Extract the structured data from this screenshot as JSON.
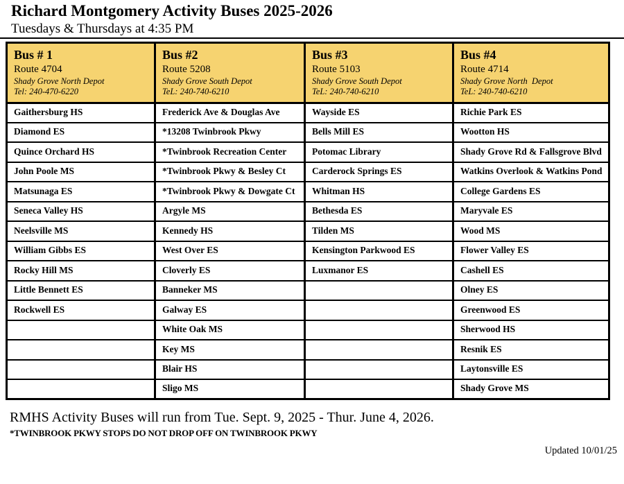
{
  "page": {
    "title": "Richard Montgomery Activity Buses 2025-2026",
    "subtitle": "Tuesdays & Thursdays at 4:35 PM"
  },
  "table": {
    "header_bg": "#F6D370",
    "buses": [
      {
        "name": "Bus # 1",
        "route": "Route 4704",
        "depot": "Shady Grove North Depot",
        "tel": "Tel: 240-470-6220"
      },
      {
        "name": "Bus #2",
        "route": "Route 5208",
        "depot": "Shady Grove South Depot",
        "tel": "TeL: 240-740-6210"
      },
      {
        "name": "Bus #3",
        "route": "Route 5103",
        "depot": "Shady Grove South Depot",
        "tel": "TeL: 240-740-6210"
      },
      {
        "name": "Bus #4",
        "route": "Route 4714",
        "depot": "Shady Grove North  Depot",
        "tel": "TeL: 240-740-6210"
      }
    ],
    "stops": [
      [
        "Gaithersburg HS",
        "Frederick Ave & Douglas Ave",
        "Wayside ES",
        "Richie Park ES"
      ],
      [
        "Diamond ES",
        "*13208 Twinbrook Pkwy",
        "Bells Mill ES",
        "Wootton HS"
      ],
      [
        "Quince Orchard HS",
        "*Twinbrook Recreation Center",
        "Potomac Library",
        "Shady Grove Rd & Fallsgrove Blvd"
      ],
      [
        "John Poole MS",
        "*Twinbrook Pkwy & Besley Ct",
        "Carderock Springs ES",
        "Watkins Overlook & Watkins Pond"
      ],
      [
        "Matsunaga ES",
        "*Twinbrook Pkwy & Dowgate Ct",
        "Whitman HS",
        "College Gardens ES"
      ],
      [
        "Seneca Valley HS",
        "Argyle MS",
        "Bethesda ES",
        "Maryvale ES"
      ],
      [
        "Neelsville MS",
        "Kennedy HS",
        "Tilden MS",
        "Wood MS"
      ],
      [
        "William Gibbs ES",
        "West Over ES",
        "Kensington Parkwood ES",
        "Flower Valley ES"
      ],
      [
        "Rocky Hill MS",
        "Cloverly ES",
        "Luxmanor ES",
        "Cashell ES"
      ],
      [
        "Little Bennett ES",
        "Banneker MS",
        "",
        "Olney ES"
      ],
      [
        "Rockwell ES",
        "Galway ES",
        "",
        "Greenwood ES"
      ],
      [
        "",
        "White Oak MS",
        "",
        "Sherwood HS"
      ],
      [
        "",
        "Key MS",
        "",
        "Resnik ES"
      ],
      [
        "",
        "Blair HS",
        "",
        "Laytonsville ES"
      ],
      [
        "",
        "Sligo MS",
        "",
        "Shady Grove MS"
      ]
    ]
  },
  "footer": {
    "run_dates": "RMHS Activity Buses will run from Tue. Sept. 9, 2025 - Thur. June 4, 2026.",
    "note": "*TWINBROOK PKWY STOPS DO NOT DROP OFF ON TWINBROOK PKWY",
    "updated": "Updated 10/01/25"
  }
}
